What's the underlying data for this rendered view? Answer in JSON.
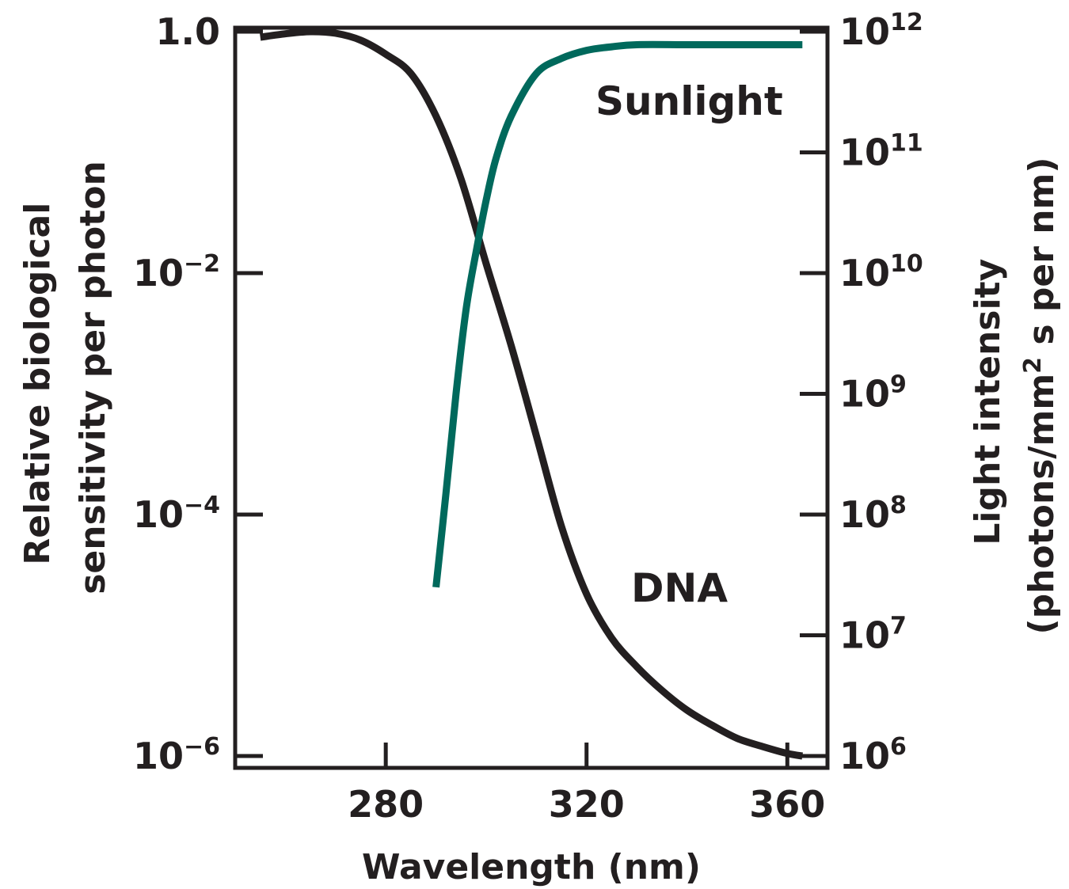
{
  "colors": {
    "axis": "#231f20",
    "dna": "#231f20",
    "sunlight": "#00695c"
  },
  "chart_data": {
    "type": "line",
    "xlabel": "Wavelength (nm)",
    "ylabel_left": [
      "Relative biological",
      "sensitivity per photon"
    ],
    "ylabel_right": {
      "line1": "Light intensity",
      "line2_pre": "(photons/mm",
      "line2_sup": "2",
      "line2_post": " s per nm)"
    },
    "xlim": [
      250,
      368
    ],
    "ylim_left": [
      1e-06,
      1
    ],
    "ylim_right": [
      1000000.0,
      1000000000000.0
    ],
    "y_scale": "log",
    "grid": false,
    "x_ticks": [
      {
        "value": 280,
        "label": "280"
      },
      {
        "value": 320,
        "label": "320"
      },
      {
        "value": 360,
        "label": "360"
      }
    ],
    "y_ticks_left": [
      {
        "exp": 0,
        "base": "1.0",
        "sup": ""
      },
      {
        "exp": -2,
        "base": "10",
        "sup": "−2"
      },
      {
        "exp": -4,
        "base": "10",
        "sup": "−4"
      },
      {
        "exp": -6,
        "base": "10",
        "sup": "−6"
      }
    ],
    "y_ticks_right": [
      {
        "exp": 12,
        "base": "10",
        "sup": "12"
      },
      {
        "exp": 11,
        "base": "10",
        "sup": "11"
      },
      {
        "exp": 10,
        "base": "10",
        "sup": "10"
      },
      {
        "exp": 9,
        "base": "10",
        "sup": "9"
      },
      {
        "exp": 8,
        "base": "10",
        "sup": "8"
      },
      {
        "exp": 7,
        "base": "10",
        "sup": "7"
      },
      {
        "exp": 6,
        "base": "10",
        "sup": "6"
      }
    ],
    "series": [
      {
        "name": "DNA",
        "axis": "left",
        "x": [
          255,
          260,
          265,
          270,
          275,
          280,
          285,
          290,
          295,
          300,
          305,
          310,
          315,
          320,
          325,
          330,
          335,
          340,
          345,
          350,
          355,
          360,
          363
        ],
        "y": [
          0.9,
          0.96,
          1.0,
          0.97,
          0.85,
          0.65,
          0.45,
          0.2,
          0.06,
          0.012,
          0.0025,
          0.00045,
          8e-05,
          2.2e-05,
          9.5e-06,
          5.5e-06,
          3.5e-06,
          2.4e-06,
          1.8e-06,
          1.4e-06,
          1.2e-06,
          1.05e-06,
          1e-06
        ]
      },
      {
        "name": "Sunlight",
        "axis": "right",
        "x": [
          290,
          292,
          294,
          296,
          298,
          300,
          302,
          305,
          310,
          315,
          320,
          325,
          330,
          340,
          350,
          360,
          363
        ],
        "y": [
          25000000,
          150000000,
          1000000000,
          5000000000,
          15000000000,
          40000000000,
          90000000000,
          200000000000,
          450000000000,
          600000000000,
          700000000000,
          750000000000,
          780000000000,
          780000000000,
          780000000000,
          780000000000,
          780000000000
        ]
      }
    ]
  }
}
